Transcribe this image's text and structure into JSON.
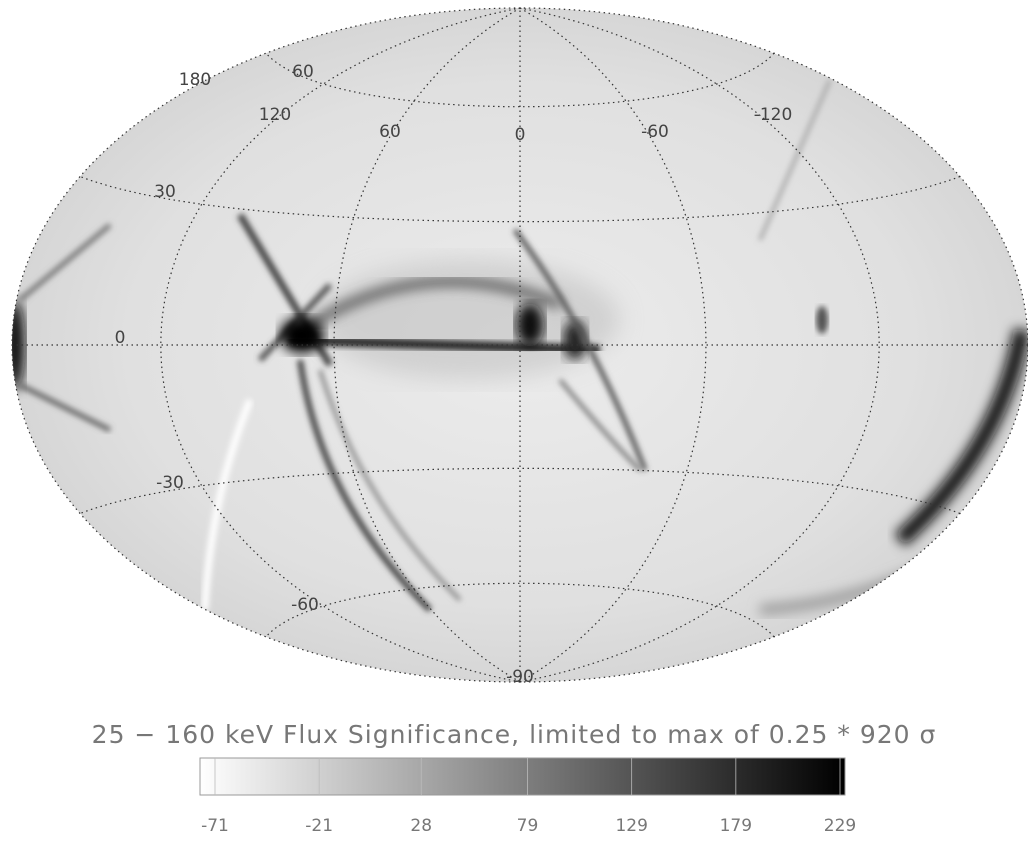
{
  "map": {
    "longitudes": [
      180,
      120,
      60,
      0,
      -60,
      -120
    ],
    "latitudes": [
      60,
      30,
      0,
      -30,
      -60,
      -90
    ]
  },
  "colorbar": {
    "title": "25 − 160 keV Flux Significance, limited to max of 0.25 * 920 σ",
    "ticks": [
      -71,
      -21,
      28,
      79,
      129,
      179,
      229
    ]
  }
}
